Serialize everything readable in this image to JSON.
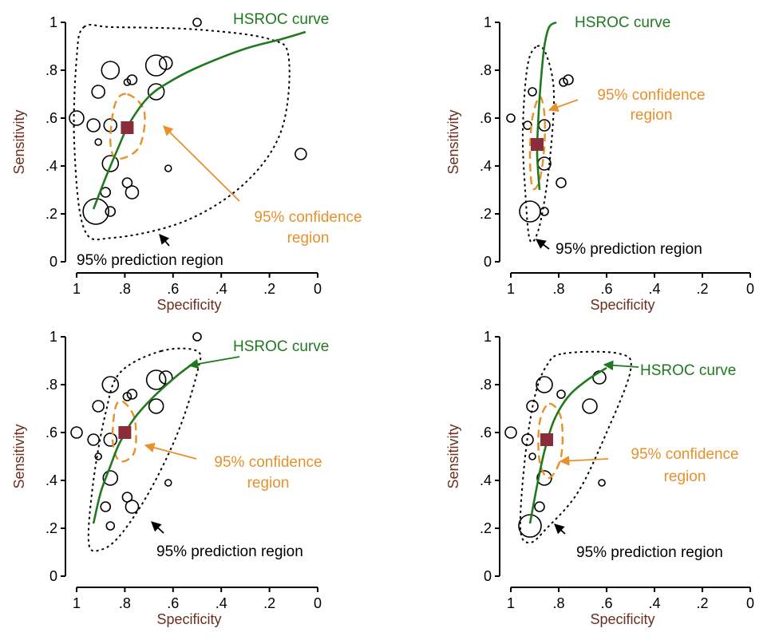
{
  "colors": {
    "curve": "#1f7a1f",
    "confidence": "#e8902a",
    "prediction": "#000000",
    "summary_point": "#8b2c3a",
    "axis_title": "#6b2f1f"
  },
  "chart_data": [
    {
      "type": "scatter",
      "title": "",
      "xlabel": "Specificity",
      "ylabel": "Sensitivity",
      "xlim": [
        1,
        0
      ],
      "ylim": [
        0,
        1
      ],
      "x_ticks": [
        "1",
        ".8",
        ".6",
        ".4",
        ".2",
        "0"
      ],
      "y_ticks": [
        "0",
        ".2",
        ".4",
        ".6",
        ".8",
        "1"
      ],
      "annotations": {
        "curve": "HSROC curve",
        "confidence": [
          "95% confidence",
          "region"
        ],
        "prediction": "95% prediction region"
      },
      "summary_point": {
        "spec": 0.79,
        "sens": 0.56
      },
      "studies": [
        {
          "spec": 1.0,
          "sens": 0.6,
          "size": 9
        },
        {
          "spec": 0.93,
          "sens": 0.57,
          "size": 8
        },
        {
          "spec": 0.91,
          "sens": 0.71,
          "size": 8
        },
        {
          "spec": 0.91,
          "sens": 0.5,
          "size": 4
        },
        {
          "spec": 0.86,
          "sens": 0.8,
          "size": 11
        },
        {
          "spec": 0.86,
          "sens": 0.57,
          "size": 8
        },
        {
          "spec": 0.86,
          "sens": 0.41,
          "size": 10
        },
        {
          "spec": 0.88,
          "sens": 0.29,
          "size": 6
        },
        {
          "spec": 0.86,
          "sens": 0.21,
          "size": 6
        },
        {
          "spec": 0.92,
          "sens": 0.21,
          "size": 16
        },
        {
          "spec": 0.79,
          "sens": 0.75,
          "size": 4
        },
        {
          "spec": 0.77,
          "sens": 0.76,
          "size": 6
        },
        {
          "spec": 0.79,
          "sens": 0.33,
          "size": 6
        },
        {
          "spec": 0.77,
          "sens": 0.29,
          "size": 8
        },
        {
          "spec": 0.67,
          "sens": 0.82,
          "size": 13
        },
        {
          "spec": 0.63,
          "sens": 0.83,
          "size": 8
        },
        {
          "spec": 0.67,
          "sens": 0.71,
          "size": 10
        },
        {
          "spec": 0.5,
          "sens": 1.0,
          "size": 5
        },
        {
          "spec": 0.62,
          "sens": 0.39,
          "size": 4
        },
        {
          "spec": 0.07,
          "sens": 0.45,
          "size": 7
        }
      ],
      "curve_points": [
        [
          0.93,
          0.22
        ],
        [
          0.88,
          0.35
        ],
        [
          0.83,
          0.47
        ],
        [
          0.78,
          0.58
        ],
        [
          0.7,
          0.69
        ],
        [
          0.6,
          0.76
        ],
        [
          0.48,
          0.82
        ],
        [
          0.3,
          0.89
        ],
        [
          0.15,
          0.93
        ],
        [
          0.05,
          0.96
        ]
      ],
      "confidence_region": [
        [
          0.79,
          0.7
        ],
        [
          0.72,
          0.63
        ],
        [
          0.74,
          0.48
        ],
        [
          0.83,
          0.43
        ],
        [
          0.86,
          0.5
        ],
        [
          0.84,
          0.66
        ]
      ],
      "prediction_region": [
        [
          0.97,
          0.98
        ],
        [
          0.85,
          0.98
        ],
        [
          0.5,
          0.97
        ],
        [
          0.2,
          0.93
        ],
        [
          0.12,
          0.85
        ],
        [
          0.15,
          0.55
        ],
        [
          0.3,
          0.33
        ],
        [
          0.55,
          0.17
        ],
        [
          0.85,
          0.1
        ],
        [
          0.97,
          0.14
        ],
        [
          1.01,
          0.5
        ],
        [
          1.0,
          0.85
        ]
      ]
    },
    {
      "type": "scatter",
      "title": "",
      "xlabel": "Specificity",
      "ylabel": "Sensitivity",
      "xlim": [
        1,
        0
      ],
      "ylim": [
        0,
        1
      ],
      "x_ticks": [
        "1",
        ".8",
        ".6",
        ".4",
        ".2",
        "0"
      ],
      "y_ticks": [
        "0",
        ".2",
        ".4",
        ".6",
        ".8",
        "1"
      ],
      "annotations": {
        "curve": "HSROC curve",
        "confidence": [
          "95% confidence",
          "region"
        ],
        "prediction": "95% prediction region"
      },
      "summary_point": {
        "spec": 0.89,
        "sens": 0.49
      },
      "studies": [
        {
          "spec": 1.0,
          "sens": 0.6,
          "size": 5
        },
        {
          "spec": 0.93,
          "sens": 0.57,
          "size": 5
        },
        {
          "spec": 0.91,
          "sens": 0.71,
          "size": 5
        },
        {
          "spec": 0.86,
          "sens": 0.57,
          "size": 7
        },
        {
          "spec": 0.86,
          "sens": 0.41,
          "size": 8
        },
        {
          "spec": 0.86,
          "sens": 0.21,
          "size": 5
        },
        {
          "spec": 0.92,
          "sens": 0.21,
          "size": 13
        },
        {
          "spec": 0.78,
          "sens": 0.75,
          "size": 5
        },
        {
          "spec": 0.76,
          "sens": 0.76,
          "size": 6
        },
        {
          "spec": 0.79,
          "sens": 0.33,
          "size": 6
        }
      ],
      "curve_points": [
        [
          0.88,
          0.3
        ],
        [
          0.89,
          0.45
        ],
        [
          0.885,
          0.6
        ],
        [
          0.875,
          0.75
        ],
        [
          0.86,
          0.9
        ],
        [
          0.84,
          0.98
        ],
        [
          0.81,
          1.0
        ]
      ],
      "confidence_region": [
        [
          0.88,
          0.69
        ],
        [
          0.86,
          0.62
        ],
        [
          0.86,
          0.48
        ],
        [
          0.88,
          0.34
        ],
        [
          0.91,
          0.31
        ],
        [
          0.92,
          0.45
        ],
        [
          0.91,
          0.6
        ]
      ],
      "prediction_region": [
        [
          0.89,
          0.9
        ],
        [
          0.85,
          0.86
        ],
        [
          0.82,
          0.7
        ],
        [
          0.84,
          0.4
        ],
        [
          0.88,
          0.15
        ],
        [
          0.92,
          0.09
        ],
        [
          0.94,
          0.3
        ],
        [
          0.95,
          0.55
        ],
        [
          0.93,
          0.82
        ]
      ]
    },
    {
      "type": "scatter",
      "title": "",
      "xlabel": "Specificity",
      "ylabel": "Sensitivity",
      "xlim": [
        1,
        0
      ],
      "ylim": [
        0,
        1
      ],
      "x_ticks": [
        "1",
        ".8",
        ".6",
        ".4",
        ".2",
        "0"
      ],
      "y_ticks": [
        "0",
        ".2",
        ".4",
        ".6",
        ".8",
        "1"
      ],
      "annotations": {
        "curve": "HSROC curve",
        "confidence": [
          "95% confidence",
          "region"
        ],
        "prediction": "95% prediction region"
      },
      "summary_point": {
        "spec": 0.8,
        "sens": 0.6
      },
      "studies": [
        {
          "spec": 1.0,
          "sens": 0.6,
          "size": 7
        },
        {
          "spec": 0.93,
          "sens": 0.57,
          "size": 7
        },
        {
          "spec": 0.91,
          "sens": 0.71,
          "size": 7
        },
        {
          "spec": 0.91,
          "sens": 0.5,
          "size": 4
        },
        {
          "spec": 0.86,
          "sens": 0.8,
          "size": 10
        },
        {
          "spec": 0.86,
          "sens": 0.57,
          "size": 8
        },
        {
          "spec": 0.86,
          "sens": 0.41,
          "size": 9
        },
        {
          "spec": 0.88,
          "sens": 0.29,
          "size": 6
        },
        {
          "spec": 0.86,
          "sens": 0.21,
          "size": 5
        },
        {
          "spec": 0.79,
          "sens": 0.75,
          "size": 5
        },
        {
          "spec": 0.77,
          "sens": 0.76,
          "size": 6
        },
        {
          "spec": 0.79,
          "sens": 0.33,
          "size": 6
        },
        {
          "spec": 0.77,
          "sens": 0.29,
          "size": 8
        },
        {
          "spec": 0.67,
          "sens": 0.82,
          "size": 12
        },
        {
          "spec": 0.63,
          "sens": 0.83,
          "size": 8
        },
        {
          "spec": 0.67,
          "sens": 0.71,
          "size": 9
        },
        {
          "spec": 0.5,
          "sens": 1.0,
          "size": 5
        },
        {
          "spec": 0.62,
          "sens": 0.39,
          "size": 4
        }
      ],
      "curve_points": [
        [
          0.93,
          0.22
        ],
        [
          0.9,
          0.35
        ],
        [
          0.86,
          0.46
        ],
        [
          0.82,
          0.56
        ],
        [
          0.76,
          0.66
        ],
        [
          0.68,
          0.75
        ],
        [
          0.58,
          0.84
        ],
        [
          0.5,
          0.9
        ]
      ],
      "confidence_region": [
        [
          0.81,
          0.73
        ],
        [
          0.76,
          0.66
        ],
        [
          0.76,
          0.52
        ],
        [
          0.82,
          0.48
        ],
        [
          0.85,
          0.56
        ],
        [
          0.84,
          0.7
        ]
      ],
      "prediction_region": [
        [
          0.65,
          0.94
        ],
        [
          0.5,
          0.94
        ],
        [
          0.5,
          0.85
        ],
        [
          0.58,
          0.6
        ],
        [
          0.7,
          0.35
        ],
        [
          0.82,
          0.17
        ],
        [
          0.9,
          0.11
        ],
        [
          0.95,
          0.14
        ],
        [
          0.93,
          0.4
        ],
        [
          0.88,
          0.68
        ],
        [
          0.82,
          0.85
        ]
      ]
    },
    {
      "type": "scatter",
      "title": "",
      "xlabel": "Specificity",
      "ylabel": "Sensitivity",
      "xlim": [
        1,
        0
      ],
      "ylim": [
        0,
        1
      ],
      "x_ticks": [
        "1",
        ".8",
        ".6",
        ".4",
        ".2",
        "0"
      ],
      "y_ticks": [
        "0",
        ".2",
        ".4",
        ".6",
        ".8",
        "1"
      ],
      "annotations": {
        "curve": "HSROC curve",
        "confidence": [
          "95% confidence",
          "region"
        ],
        "prediction": "95% prediction region"
      },
      "summary_point": {
        "spec": 0.85,
        "sens": 0.57
      },
      "studies": [
        {
          "spec": 1.0,
          "sens": 0.6,
          "size": 7
        },
        {
          "spec": 0.93,
          "sens": 0.57,
          "size": 7
        },
        {
          "spec": 0.91,
          "sens": 0.71,
          "size": 7
        },
        {
          "spec": 0.91,
          "sens": 0.5,
          "size": 4
        },
        {
          "spec": 0.86,
          "sens": 0.8,
          "size": 10
        },
        {
          "spec": 0.86,
          "sens": 0.41,
          "size": 9
        },
        {
          "spec": 0.88,
          "sens": 0.29,
          "size": 6
        },
        {
          "spec": 0.92,
          "sens": 0.21,
          "size": 14
        },
        {
          "spec": 0.79,
          "sens": 0.76,
          "size": 5
        },
        {
          "spec": 0.67,
          "sens": 0.71,
          "size": 9
        },
        {
          "spec": 0.63,
          "sens": 0.83,
          "size": 8
        },
        {
          "spec": 0.62,
          "sens": 0.39,
          "size": 4
        }
      ],
      "curve_points": [
        [
          0.92,
          0.22
        ],
        [
          0.89,
          0.38
        ],
        [
          0.86,
          0.52
        ],
        [
          0.82,
          0.65
        ],
        [
          0.76,
          0.75
        ],
        [
          0.68,
          0.82
        ],
        [
          0.6,
          0.87
        ]
      ],
      "confidence_region": [
        [
          0.84,
          0.72
        ],
        [
          0.79,
          0.66
        ],
        [
          0.79,
          0.5
        ],
        [
          0.84,
          0.41
        ],
        [
          0.88,
          0.48
        ],
        [
          0.88,
          0.64
        ]
      ],
      "prediction_region": [
        [
          0.78,
          0.93
        ],
        [
          0.55,
          0.93
        ],
        [
          0.5,
          0.86
        ],
        [
          0.6,
          0.6
        ],
        [
          0.72,
          0.35
        ],
        [
          0.85,
          0.2
        ],
        [
          0.92,
          0.14
        ],
        [
          0.96,
          0.2
        ],
        [
          0.94,
          0.5
        ],
        [
          0.9,
          0.75
        ],
        [
          0.85,
          0.88
        ]
      ]
    }
  ]
}
